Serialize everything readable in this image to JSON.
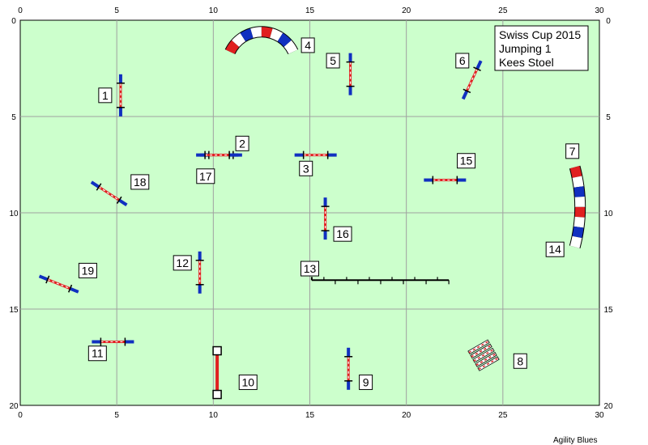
{
  "info": {
    "lines": [
      "Swiss Cup 2015",
      "Jumping 1",
      "Kees Stoel"
    ]
  },
  "footer": "Agility Blues",
  "field": {
    "width": 30,
    "height": 20,
    "bg_color": "#ccffcc",
    "grid_color": "#a0a0a0"
  },
  "axis": {
    "x_ticks": [
      "0",
      "5",
      "10",
      "15",
      "20",
      "25",
      "30"
    ],
    "y_ticks": [
      "0",
      "5",
      "10",
      "15",
      "20"
    ]
  },
  "colors": {
    "blue": "#1030c0",
    "red": "#e02020",
    "white": "#ffffff",
    "black": "#000000"
  },
  "obstacles": [
    {
      "type": "jump",
      "label": "1",
      "x": 5.2,
      "y": 3.9,
      "angle_deg": 90,
      "label_pos": [
        4.4,
        3.9
      ]
    },
    {
      "type": "jump",
      "label": "2",
      "x": 10.4,
      "y": 7.0,
      "angle_deg": 0,
      "label_pos": [
        11.5,
        6.4
      ]
    },
    {
      "type": "jump",
      "label": "3",
      "x": 15.3,
      "y": 7.0,
      "angle_deg": 0,
      "label_pos": [
        14.8,
        7.7
      ]
    },
    {
      "type": "tunnel",
      "label": "4",
      "cx": 12.5,
      "cy": 2.4,
      "r": 1.8,
      "start_deg": 205,
      "end_deg": 335,
      "label_pos": [
        14.9,
        1.3
      ]
    },
    {
      "type": "jump",
      "label": "5",
      "x": 17.1,
      "y": 2.8,
      "angle_deg": 90,
      "label_pos": [
        16.2,
        2.1
      ]
    },
    {
      "type": "jump",
      "label": "6",
      "x": 23.4,
      "y": 3.1,
      "angle_deg": 115,
      "label_pos": [
        22.9,
        2.1
      ]
    },
    {
      "type": "tunnel",
      "label": "7",
      "cx": 21.0,
      "cy": 9.7,
      "r": 8.0,
      "start_deg": -15,
      "end_deg": 15,
      "label_pos": [
        28.6,
        6.8
      ]
    },
    {
      "type": "weave_box",
      "label": "8",
      "x": 24.0,
      "y": 17.4,
      "angle_deg": -30,
      "label_pos": [
        25.9,
        17.7
      ]
    },
    {
      "type": "jump",
      "label": "9",
      "x": 17.0,
      "y": 18.1,
      "angle_deg": 90,
      "label_pos": [
        17.9,
        18.8
      ]
    },
    {
      "type": "tyre_bar",
      "label": "10",
      "x": 10.2,
      "y": 18.3,
      "angle_deg": 90,
      "label_pos": [
        11.8,
        18.8
      ]
    },
    {
      "type": "jump",
      "label": "11",
      "x": 4.8,
      "y": 16.7,
      "angle_deg": 0,
      "label_pos": [
        4.0,
        17.3
      ]
    },
    {
      "type": "jump",
      "label": "12",
      "x": 9.3,
      "y": 13.1,
      "angle_deg": 90,
      "label_pos": [
        8.4,
        12.6
      ]
    },
    {
      "type": "weave",
      "label": "13",
      "x1": 15.1,
      "x2": 22.2,
      "y": 13.5,
      "label_pos": [
        15.0,
        12.9
      ]
    },
    {
      "type": "tunnel_end",
      "label": "14",
      "label_pos": [
        27.7,
        11.9
      ]
    },
    {
      "type": "jump",
      "label": "15",
      "x": 22.0,
      "y": 8.3,
      "angle_deg": 0,
      "label_pos": [
        23.1,
        7.3
      ]
    },
    {
      "type": "jump",
      "label": "16",
      "x": 15.8,
      "y": 10.3,
      "angle_deg": 90,
      "label_pos": [
        16.7,
        11.1
      ]
    },
    {
      "type": "jump",
      "label": "17",
      "x": 10.2,
      "y": 7.0,
      "angle_deg": 0,
      "label_pos": [
        9.6,
        8.1
      ]
    },
    {
      "type": "jump",
      "label": "18",
      "x": 4.6,
      "y": 9.0,
      "angle_deg": 33,
      "label_pos": [
        6.2,
        8.4
      ]
    },
    {
      "type": "jump",
      "label": "19",
      "x": 2.0,
      "y": 13.7,
      "angle_deg": 22,
      "label_pos": [
        3.5,
        13.0
      ]
    }
  ]
}
